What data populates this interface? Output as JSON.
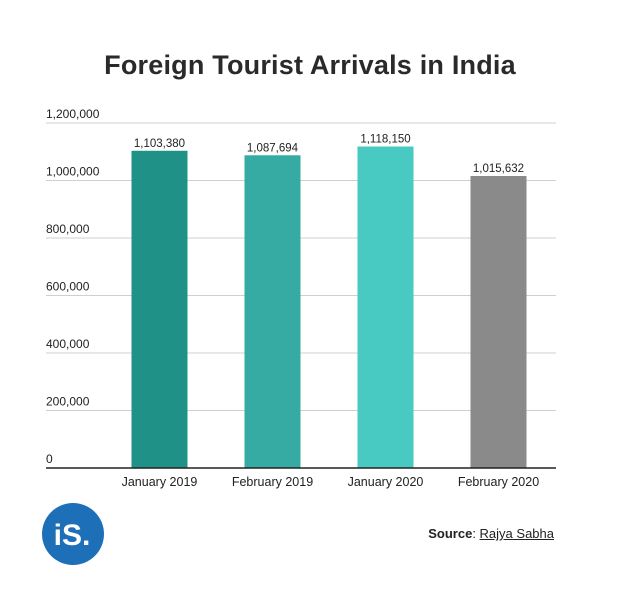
{
  "chart_data": {
    "type": "bar",
    "title": "Foreign Tourist Arrivals in India",
    "categories": [
      "January 2019",
      "February 2019",
      "January 2020",
      "February 2020"
    ],
    "values": [
      1103380,
      1087694,
      1118150,
      1015632
    ],
    "data_labels": [
      "1,103,380",
      "1,087,694",
      "1,118,150",
      "1,015,632"
    ],
    "bar_colors": [
      "#1f9187",
      "#35aba4",
      "#48c9c2",
      "#8a8a8a"
    ],
    "ylim": [
      0,
      1200000
    ],
    "yticks": [
      0,
      200000,
      400000,
      600000,
      800000,
      1000000,
      1200000
    ],
    "ytick_labels": [
      "0",
      "200,000",
      "400,000",
      "600,000",
      "800,000",
      "1,000,000",
      "1,200,000"
    ],
    "grid": true,
    "xlabel": "",
    "ylabel": ""
  },
  "logo": {
    "text": "iS.",
    "color": "#1d6fb8"
  },
  "source": {
    "label": "Source",
    "separator": ": ",
    "name": "Rajya Sabha"
  }
}
